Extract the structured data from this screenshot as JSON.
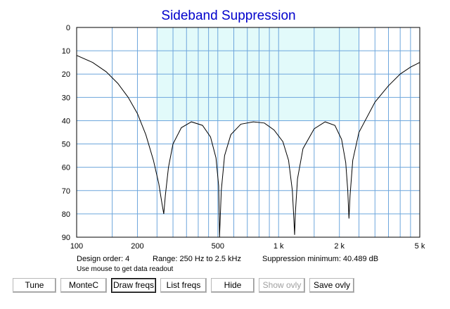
{
  "chart_data": {
    "type": "line",
    "title": "Sideband Suppression",
    "x_scale": "log",
    "xlim": [
      100,
      5000
    ],
    "ylim": [
      0,
      90
    ],
    "y_inverted": true,
    "grid": true,
    "x_tick_labels": [
      {
        "value": 100,
        "label": "100"
      },
      {
        "value": 200,
        "label": "200"
      },
      {
        "value": 500,
        "label": "500"
      },
      {
        "value": 1000,
        "label": "1 k"
      },
      {
        "value": 2000,
        "label": "2 k"
      },
      {
        "value": 5000,
        "label": "5 k"
      }
    ],
    "y_ticks": [
      0,
      10,
      20,
      30,
      40,
      50,
      60,
      70,
      80,
      90
    ],
    "x_grid": [
      100,
      150,
      200,
      250,
      300,
      350,
      400,
      450,
      500,
      600,
      700,
      800,
      900,
      1000,
      1500,
      2000,
      2500,
      3000,
      3500,
      4000,
      4500,
      5000
    ],
    "shaded_region": {
      "x": [
        250,
        2500
      ],
      "y": [
        0,
        40
      ]
    },
    "series": [
      {
        "color": "#000000",
        "x": [
          100,
          120,
          140,
          160,
          180,
          200,
          220,
          240,
          255,
          265,
          270,
          275,
          285,
          300,
          330,
          370,
          420,
          460,
          490,
          505,
          510,
          520,
          540,
          580,
          650,
          750,
          850,
          950,
          1050,
          1120,
          1170,
          1190,
          1200,
          1210,
          1240,
          1320,
          1500,
          1700,
          1900,
          2050,
          2150,
          2200,
          2230,
          2260,
          2330,
          2500,
          3000,
          3500,
          4000,
          4500,
          5000
        ],
        "y": [
          12,
          15,
          19,
          24,
          30,
          37,
          46,
          57,
          67,
          76,
          80,
          72,
          60,
          50,
          43,
          40.5,
          42,
          47,
          56,
          68,
          90,
          70,
          55,
          46,
          41.5,
          40.5,
          41,
          44,
          49,
          57,
          70,
          82,
          89,
          80,
          65,
          52,
          43.5,
          40.5,
          42,
          48,
          58,
          70,
          82,
          72,
          57,
          45,
          32,
          25,
          20,
          17,
          15
        ]
      }
    ]
  },
  "info": {
    "design_order": "Design order:  4",
    "range": "Range:  250 Hz to  2.5 kHz",
    "suppression": "Suppression minimum: 40.489 dB",
    "hint": "Use mouse to get data readout"
  },
  "buttons": [
    {
      "label": "Tune",
      "enabled": true
    },
    {
      "label": "MonteC",
      "enabled": true
    },
    {
      "label": "Draw freqs",
      "enabled": true
    },
    {
      "label": "List freqs",
      "enabled": true
    },
    {
      "label": "Hide",
      "enabled": true
    },
    {
      "label": "Show ovly",
      "enabled": false
    },
    {
      "label": "Save ovly",
      "enabled": true
    }
  ],
  "colors": {
    "title": "#0000cc",
    "grid": "#6ea6dc",
    "shade": "#e2fafa",
    "curve": "#000000",
    "plot_border": "#000000"
  }
}
